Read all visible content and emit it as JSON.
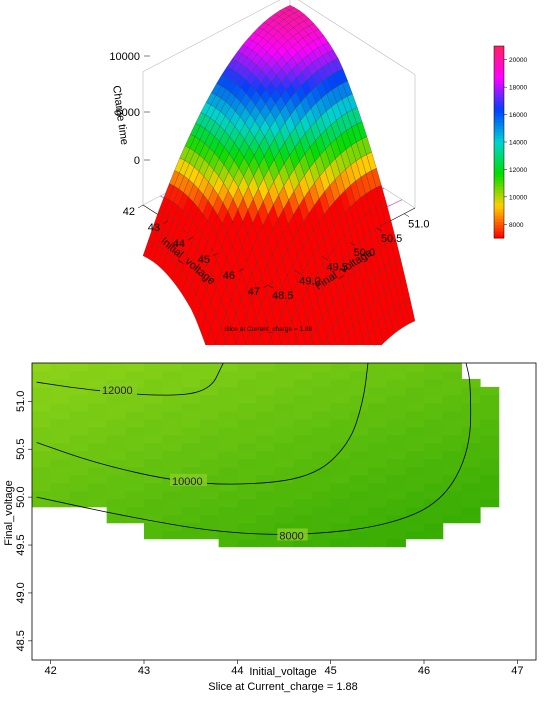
{
  "colors": {
    "surface_low": "#ffd000",
    "surface_mid": "#00d2d2",
    "surface_high": "#ff00c8",
    "heatmap_low": "#2ca800",
    "heatmap_high": "#8fd41a",
    "contour_line": "#000000"
  },
  "chart_data": [
    {
      "type": "surface",
      "zlabel": "Charge time",
      "xlabel": "Initial_voltage",
      "ylabel": "Final_voltage",
      "caption": "Slice at Current_charge = 1.88",
      "x_ticks": [
        "42",
        "43",
        "44",
        "45",
        "46",
        "47"
      ],
      "y_ticks": [
        "48.5",
        "49.0",
        "49.5",
        "50.0",
        "50.5",
        "51.0"
      ],
      "z_ticks": [
        "0",
        "5000",
        "10000"
      ],
      "xlim": [
        42,
        47
      ],
      "ylim": [
        48.5,
        51.2
      ],
      "zlim": [
        0,
        12000
      ],
      "colorbar": {
        "ticks": [
          "8000",
          "10000",
          "12000",
          "14000",
          "16000",
          "18000",
          "20000"
        ],
        "range": [
          7000,
          21000
        ],
        "colors": [
          "#ff0000",
          "#ffd000",
          "#00dd00",
          "#00d2d2",
          "#0040ff",
          "#ff00ff",
          "#ff2060"
        ]
      },
      "model": {
        "peak_value": 20000,
        "peak_at": [
          42.3,
          51.1
        ],
        "x_drop": 230,
        "y_drop": 6000
      }
    },
    {
      "type": "heatmap",
      "xlabel": "Initial_voltage",
      "ylabel": "Final_voltage",
      "caption": "Slice at Current_charge = 1.88",
      "x_ticks": [
        "42",
        "43",
        "44",
        "45",
        "46",
        "47"
      ],
      "y_ticks": [
        "48.5",
        "49.0",
        "49.5",
        "50.0",
        "50.5",
        "51.0"
      ],
      "xlim": [
        41.8,
        47.2
      ],
      "ylim": [
        48.3,
        51.4
      ],
      "contours": [
        {
          "label": "12000",
          "points": [
            [
              41.85,
              51.2
            ],
            [
              42.4,
              51.12
            ],
            [
              43.2,
              51.05
            ],
            [
              43.7,
              51.1
            ],
            [
              43.85,
              51.4
            ]
          ]
        },
        {
          "label": "10000",
          "points": [
            [
              41.85,
              50.57
            ],
            [
              42.5,
              50.35
            ],
            [
              43.3,
              50.17
            ],
            [
              44.0,
              50.12
            ],
            [
              44.8,
              50.2
            ],
            [
              45.2,
              50.55
            ],
            [
              45.35,
              51.0
            ],
            [
              45.4,
              51.4
            ]
          ]
        },
        {
          "label": "8000",
          "points": [
            [
              41.85,
              50.0
            ],
            [
              42.8,
              49.8
            ],
            [
              43.8,
              49.63
            ],
            [
              44.7,
              49.6
            ],
            [
              45.6,
              49.7
            ],
            [
              46.2,
              49.95
            ],
            [
              46.5,
              50.5
            ],
            [
              46.5,
              51.2
            ],
            [
              46.45,
              51.4
            ]
          ]
        }
      ],
      "feasible_region_top": 51.4,
      "feasible_region_bottom_profile": [
        [
          41.8,
          49.94
        ],
        [
          42.0,
          49.94
        ],
        [
          42.0,
          49.86
        ],
        [
          42.6,
          49.86
        ],
        [
          42.6,
          49.74
        ],
        [
          43.0,
          49.74
        ],
        [
          43.0,
          49.6
        ],
        [
          43.9,
          49.6
        ],
        [
          43.9,
          49.52
        ],
        [
          45.8,
          49.52
        ],
        [
          45.8,
          49.6
        ],
        [
          46.2,
          49.6
        ],
        [
          46.2,
          49.72
        ],
        [
          46.7,
          49.72
        ],
        [
          46.7,
          49.86
        ],
        [
          46.9,
          49.86
        ],
        [
          46.9,
          50.8
        ],
        [
          46.75,
          50.8
        ],
        [
          46.75,
          51.14
        ],
        [
          46.55,
          51.14
        ],
        [
          46.55,
          51.25
        ],
        [
          46.35,
          51.25
        ],
        [
          46.35,
          51.4
        ]
      ]
    }
  ]
}
